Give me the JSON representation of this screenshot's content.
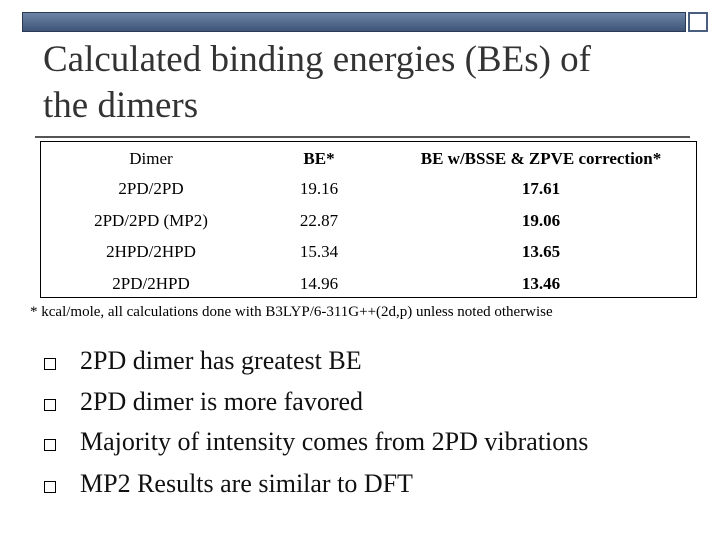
{
  "header": {
    "title_line1": "Calculated binding energies (BEs) of",
    "title_line2": "the dimers"
  },
  "table": {
    "columns": [
      "Dimer",
      "BE*",
      "BE w/BSSE & ZPVE correction*"
    ],
    "rows": [
      [
        "2PD/2PD",
        "19.16",
        "17.61"
      ],
      [
        "2PD/2PD (MP2)",
        "22.87",
        "19.06"
      ],
      [
        "2HPD/2HPD",
        "15.34",
        "13.65"
      ],
      [
        "2PD/2HPD",
        "14.96",
        "13.46"
      ]
    ]
  },
  "footnote": "* kcal/mole, all calculations done with B3LYP/6-311G++(2d,p) unless noted otherwise",
  "bullets": [
    "2PD dimer has greatest BE",
    "2PD dimer is more favored",
    "Majority of intensity comes from 2PD vibrations",
    "MP2 Results are similar to DFT"
  ]
}
